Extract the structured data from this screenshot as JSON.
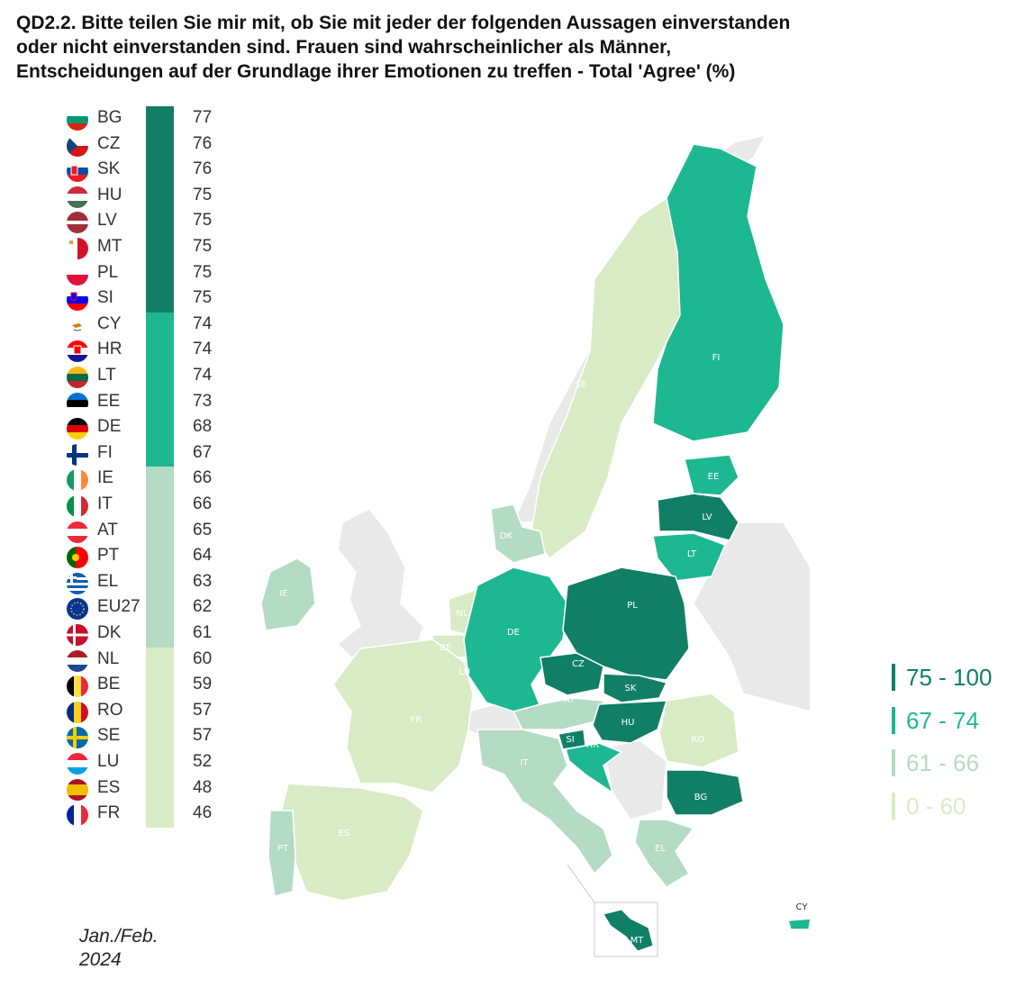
{
  "title": {
    "line1": "QD2.2. Bitte teilen Sie mir mit, ob Sie mit jeder der folgenden Aussagen einverstanden",
    "line2": "oder nicht einverstanden sind. Frauen sind wahrscheinlicher als Männer,",
    "line3": "Entscheidungen auf der Grundlage ihrer Emotionen zu treffen - Total 'Agree' (%)"
  },
  "colors": {
    "band_75_100": "#107f66",
    "band_67_74": "#1db891",
    "band_61_66": "#b4dbc3",
    "band_0_60": "#d9ebc5",
    "no_data": "#e9e9e9"
  },
  "ranking": [
    {
      "code": "BG",
      "value": 77,
      "band": "band_75_100",
      "flag": "bg-flag"
    },
    {
      "code": "CZ",
      "value": 76,
      "band": "band_75_100",
      "flag": "cz-flag"
    },
    {
      "code": "SK",
      "value": 76,
      "band": "band_75_100",
      "flag": "sk-flag"
    },
    {
      "code": "HU",
      "value": 75,
      "band": "band_75_100",
      "flag": "hu-flag"
    },
    {
      "code": "LV",
      "value": 75,
      "band": "band_75_100",
      "flag": "lv-flag"
    },
    {
      "code": "MT",
      "value": 75,
      "band": "band_75_100",
      "flag": "mt-flag"
    },
    {
      "code": "PL",
      "value": 75,
      "band": "band_75_100",
      "flag": "pl-flag"
    },
    {
      "code": "SI",
      "value": 75,
      "band": "band_75_100",
      "flag": "si-flag"
    },
    {
      "code": "CY",
      "value": 74,
      "band": "band_67_74",
      "flag": "cy-flag"
    },
    {
      "code": "HR",
      "value": 74,
      "band": "band_67_74",
      "flag": "hr-flag"
    },
    {
      "code": "LT",
      "value": 74,
      "band": "band_67_74",
      "flag": "lt-flag"
    },
    {
      "code": "EE",
      "value": 73,
      "band": "band_67_74",
      "flag": "ee-flag"
    },
    {
      "code": "DE",
      "value": 68,
      "band": "band_67_74",
      "flag": "de-flag"
    },
    {
      "code": "FI",
      "value": 67,
      "band": "band_67_74",
      "flag": "fi-flag"
    },
    {
      "code": "IE",
      "value": 66,
      "band": "band_61_66",
      "flag": "ie-flag"
    },
    {
      "code": "IT",
      "value": 66,
      "band": "band_61_66",
      "flag": "it-flag"
    },
    {
      "code": "AT",
      "value": 65,
      "band": "band_61_66",
      "flag": "at-flag"
    },
    {
      "code": "PT",
      "value": 64,
      "band": "band_61_66",
      "flag": "pt-flag"
    },
    {
      "code": "EL",
      "value": 63,
      "band": "band_61_66",
      "flag": "el-flag"
    },
    {
      "code": "EU27",
      "value": 62,
      "band": "band_61_66",
      "flag": "eu-flag"
    },
    {
      "code": "DK",
      "value": 61,
      "band": "band_61_66",
      "flag": "dk-flag"
    },
    {
      "code": "NL",
      "value": 60,
      "band": "band_0_60",
      "flag": "nl-flag"
    },
    {
      "code": "BE",
      "value": 59,
      "band": "band_0_60",
      "flag": "be-flag"
    },
    {
      "code": "RO",
      "value": 57,
      "band": "band_0_60",
      "flag": "ro-flag"
    },
    {
      "code": "SE",
      "value": 57,
      "band": "band_0_60",
      "flag": "se-flag"
    },
    {
      "code": "LU",
      "value": 52,
      "band": "band_0_60",
      "flag": "lu-flag"
    },
    {
      "code": "ES",
      "value": 48,
      "band": "band_0_60",
      "flag": "es-flag"
    },
    {
      "code": "FR",
      "value": 46,
      "band": "band_0_60",
      "flag": "fr-flag"
    }
  ],
  "legend": [
    {
      "label": "75 - 100",
      "band": "band_75_100"
    },
    {
      "label": "67 - 74",
      "band": "band_67_74"
    },
    {
      "label": "61 - 66",
      "band": "band_61_66"
    },
    {
      "label": "0 - 60",
      "band": "band_0_60"
    }
  ],
  "map_labels": {
    "FI": "FI",
    "SE": "SE",
    "EE": "EE",
    "LV": "LV",
    "LT": "LT",
    "DK": "DK",
    "IE": "IE",
    "NL": "NL",
    "BE": "BE",
    "LU": "LU",
    "DE": "DE",
    "PL": "PL",
    "CZ": "CZ",
    "SK": "SK",
    "AT": "AT",
    "HU": "HU",
    "FR": "FR",
    "SI": "SI",
    "HR": "HR",
    "RO": "RO",
    "IT": "IT",
    "BG": "BG",
    "ES": "ES",
    "PT": "PT",
    "EL": "EL",
    "MT": "MT",
    "CY": "CY"
  },
  "date": {
    "line1": "Jan./Feb.",
    "line2": "2024"
  }
}
